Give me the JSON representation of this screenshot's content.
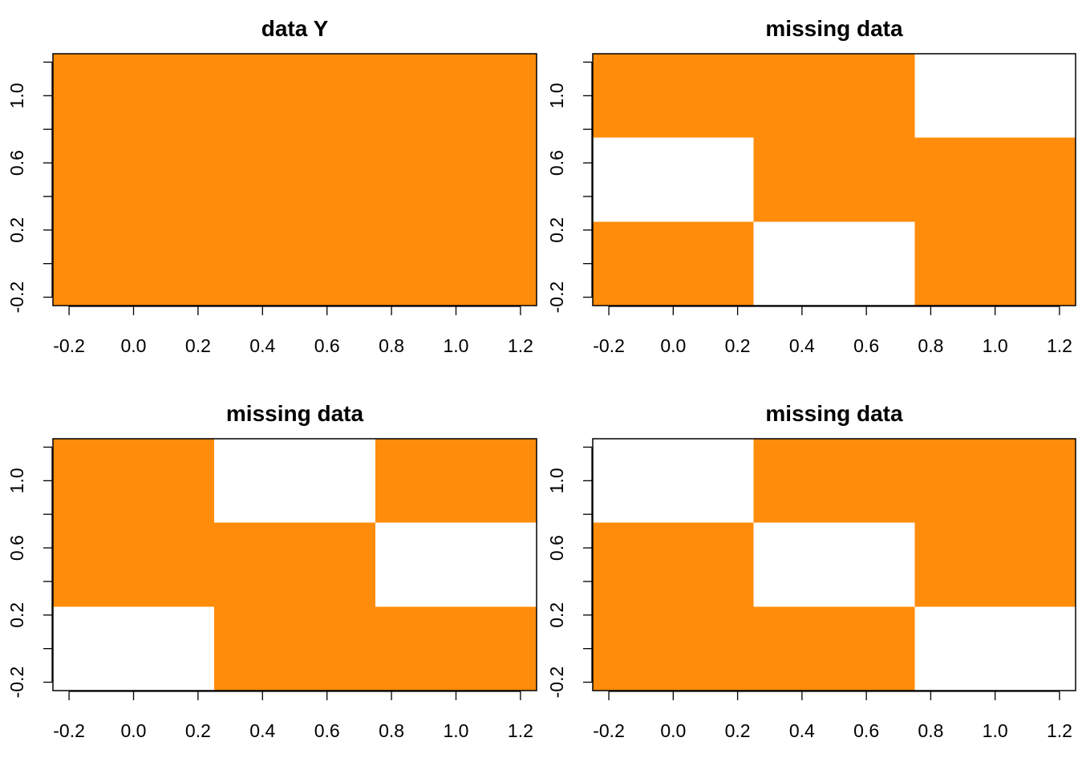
{
  "chart_data": [
    {
      "type": "heatmap",
      "title": "data Y",
      "xlabel": "",
      "ylabel": "",
      "xlim": [
        -0.25,
        1.25
      ],
      "ylim": [
        -0.25,
        1.25
      ],
      "x_ticks": [
        "-0.2",
        "0.0",
        "0.2",
        "0.4",
        "0.6",
        "0.8",
        "1.0",
        "1.2"
      ],
      "y_tick_labels": [
        "-0.2",
        "0.2",
        "0.6",
        "1.0"
      ],
      "x_centers": [
        0,
        0.5,
        1
      ],
      "y_centers": [
        0,
        0.5,
        1
      ],
      "cells": [
        [
          1,
          1,
          1
        ],
        [
          1,
          1,
          1
        ],
        [
          1,
          1,
          1
        ]
      ]
    },
    {
      "type": "heatmap",
      "title": "missing data",
      "xlabel": "",
      "ylabel": "",
      "xlim": [
        -0.25,
        1.25
      ],
      "ylim": [
        -0.25,
        1.25
      ],
      "x_ticks": [
        "-0.2",
        "0.0",
        "0.2",
        "0.4",
        "0.6",
        "0.8",
        "1.0",
        "1.2"
      ],
      "y_tick_labels": [
        "-0.2",
        "0.2",
        "0.6",
        "1.0"
      ],
      "x_centers": [
        0,
        0.5,
        1
      ],
      "y_centers": [
        0,
        0.5,
        1
      ],
      "cells": [
        [
          1,
          0,
          1
        ],
        [
          0,
          1,
          1
        ],
        [
          1,
          1,
          0
        ]
      ]
    },
    {
      "type": "heatmap",
      "title": "missing data",
      "xlabel": "",
      "ylabel": "",
      "xlim": [
        -0.25,
        1.25
      ],
      "ylim": [
        -0.25,
        1.25
      ],
      "x_ticks": [
        "-0.2",
        "0.0",
        "0.2",
        "0.4",
        "0.6",
        "0.8",
        "1.0",
        "1.2"
      ],
      "y_tick_labels": [
        "-0.2",
        "0.2",
        "0.6",
        "1.0"
      ],
      "x_centers": [
        0,
        0.5,
        1
      ],
      "y_centers": [
        0,
        0.5,
        1
      ],
      "cells": [
        [
          0,
          1,
          1
        ],
        [
          1,
          1,
          0
        ],
        [
          1,
          0,
          1
        ]
      ]
    },
    {
      "type": "heatmap",
      "title": "missing data",
      "xlabel": "",
      "ylabel": "",
      "xlim": [
        -0.25,
        1.25
      ],
      "ylim": [
        -0.25,
        1.25
      ],
      "x_ticks": [
        "-0.2",
        "0.0",
        "0.2",
        "0.4",
        "0.6",
        "0.8",
        "1.0",
        "1.2"
      ],
      "y_tick_labels": [
        "-0.2",
        "0.2",
        "0.6",
        "1.0"
      ],
      "x_centers": [
        0,
        0.5,
        1
      ],
      "y_centers": [
        0,
        0.5,
        1
      ],
      "cells": [
        [
          1,
          1,
          0
        ],
        [
          1,
          0,
          1
        ],
        [
          0,
          1,
          1
        ]
      ]
    }
  ],
  "colors": {
    "observed": "#FF8C0A",
    "missing": "#FFFFFF"
  }
}
